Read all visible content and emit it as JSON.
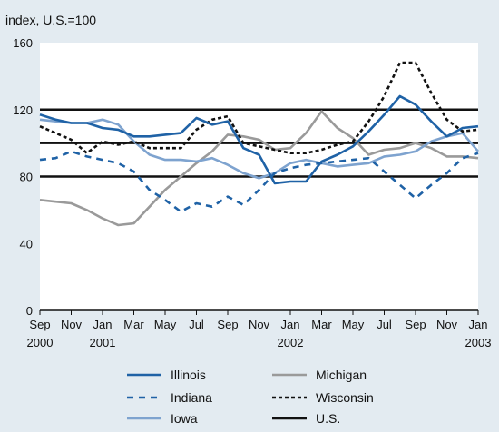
{
  "chart_data": {
    "type": "line",
    "ylabel": "index, U.S.=100",
    "ylim": [
      0,
      160
    ],
    "yticks": [
      0,
      40,
      80,
      120,
      160
    ],
    "grid": false,
    "legend": "bottom",
    "x": [
      "2000-09",
      "2000-10",
      "2000-11",
      "2000-12",
      "2001-01",
      "2001-02",
      "2001-03",
      "2001-04",
      "2001-05",
      "2001-06",
      "2001-07",
      "2001-08",
      "2001-09",
      "2001-10",
      "2001-11",
      "2001-12",
      "2002-01",
      "2002-02",
      "2002-03",
      "2002-04",
      "2002-05",
      "2002-06",
      "2002-07",
      "2002-08",
      "2002-09",
      "2002-10",
      "2002-11",
      "2002-12",
      "2003-01"
    ],
    "xticks": [
      {
        "month": "Sep",
        "year": "2000",
        "x": "2000-09"
      },
      {
        "month": "Nov",
        "year": "",
        "x": "2000-11"
      },
      {
        "month": "Jan",
        "year": "2001",
        "x": "2001-01"
      },
      {
        "month": "Mar",
        "year": "",
        "x": "2001-03"
      },
      {
        "month": "May",
        "year": "",
        "x": "2001-05"
      },
      {
        "month": "Jul",
        "year": "",
        "x": "2001-07"
      },
      {
        "month": "Sep",
        "year": "",
        "x": "2001-09"
      },
      {
        "month": "Nov",
        "year": "",
        "x": "2001-11"
      },
      {
        "month": "Jan",
        "year": "2002",
        "x": "2002-01"
      },
      {
        "month": "Mar",
        "year": "",
        "x": "2002-03"
      },
      {
        "month": "May",
        "year": "",
        "x": "2002-05"
      },
      {
        "month": "Jul",
        "year": "",
        "x": "2002-07"
      },
      {
        "month": "Sep",
        "year": "",
        "x": "2002-09"
      },
      {
        "month": "Nov",
        "year": "",
        "x": "2002-11"
      },
      {
        "month": "Jan",
        "year": "2003",
        "x": "2003-01"
      }
    ],
    "reference_lines": [
      80,
      100,
      120
    ],
    "series": [
      {
        "name": "Illinois",
        "color": "#1f62a6",
        "dash": "solid",
        "values": [
          117,
          114,
          112,
          112,
          109,
          108,
          104,
          104,
          105,
          106,
          115,
          111,
          113,
          97,
          93,
          76,
          77,
          77,
          89,
          93,
          98,
          107,
          117,
          128,
          123,
          113,
          104,
          109,
          110
        ]
      },
      {
        "name": "Indiana",
        "color": "#1f62a6",
        "dash": "dashed",
        "values": [
          90,
          91,
          95,
          92,
          90,
          88,
          83,
          72,
          66,
          59,
          64,
          62,
          68,
          63,
          72,
          82,
          85,
          87,
          88,
          89,
          90,
          91,
          83,
          75,
          67,
          75,
          82,
          91,
          94
        ]
      },
      {
        "name": "Iowa",
        "color": "#7ea3cf",
        "dash": "solid",
        "values": [
          114,
          113,
          112,
          112,
          114,
          111,
          101,
          93,
          90,
          90,
          89,
          91,
          87,
          82,
          79,
          82,
          88,
          90,
          88,
          86,
          87,
          88,
          92,
          93,
          95,
          101,
          104,
          106,
          95
        ]
      },
      {
        "name": "Michigan",
        "color": "#9a9a9a",
        "dash": "solid",
        "values": [
          66,
          65,
          64,
          60,
          55,
          51,
          52,
          62,
          72,
          80,
          88,
          95,
          105,
          104,
          102,
          96,
          97,
          106,
          119,
          109,
          103,
          93,
          96,
          97,
          100,
          97,
          92,
          92,
          91
        ]
      },
      {
        "name": "Wisconsin",
        "color": "#111111",
        "dash": "dotted",
        "values": [
          110,
          106,
          102,
          94,
          101,
          99,
          101,
          97,
          97,
          97,
          108,
          114,
          116,
          100,
          98,
          96,
          94,
          94,
          96,
          99,
          101,
          113,
          128,
          148,
          148,
          130,
          114,
          107,
          108
        ]
      },
      {
        "name": "U.S.",
        "color": "#111111",
        "dash": "solid",
        "values": [
          100,
          100,
          100,
          100,
          100,
          100,
          100,
          100,
          100,
          100,
          100,
          100,
          100,
          100,
          100,
          100,
          100,
          100,
          100,
          100,
          100,
          100,
          100,
          100,
          100,
          100,
          100,
          100,
          100
        ]
      }
    ]
  }
}
